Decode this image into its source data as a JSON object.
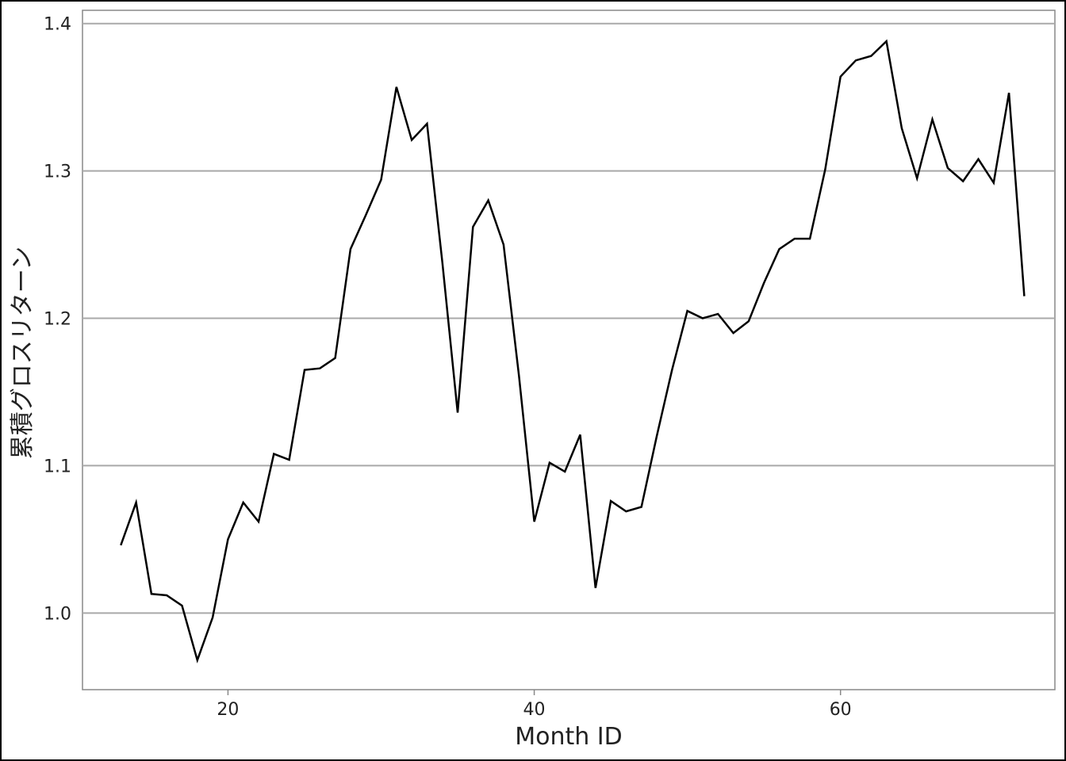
{
  "chart_data": {
    "type": "line",
    "title": "",
    "xlabel": "Month ID",
    "ylabel": "累積グロスリターン",
    "xlim": [
      10.5,
      74
    ],
    "ylim": [
      0.948,
      1.409
    ],
    "xticks": [
      20,
      40,
      60
    ],
    "yticks": [
      1.0,
      1.1,
      1.2,
      1.3,
      1.4
    ],
    "xtick_labels": [
      "20",
      "40",
      "60"
    ],
    "ytick_labels": [
      "1.0",
      "1.1",
      "1.2",
      "1.3",
      "1.4"
    ],
    "grid": "horizontal",
    "series": [
      {
        "color": "#000000",
        "x": [
          13,
          14,
          15,
          16,
          17,
          18,
          19,
          20,
          21,
          22,
          23,
          24,
          25,
          26,
          27,
          28,
          29,
          30,
          31,
          32,
          33,
          34,
          35,
          36,
          37,
          38,
          39,
          40,
          41,
          42,
          43,
          44,
          45,
          46,
          47,
          48,
          49,
          50,
          51,
          52,
          53,
          54,
          55,
          56,
          57,
          58,
          59,
          60,
          61,
          62,
          63,
          64,
          65,
          66,
          67,
          68,
          69,
          70,
          71,
          72
        ],
        "y": [
          1.046,
          1.075,
          1.013,
          1.012,
          1.005,
          0.968,
          0.997,
          1.05,
          1.075,
          1.062,
          1.108,
          1.104,
          1.165,
          1.166,
          1.173,
          1.247,
          1.27,
          1.294,
          1.357,
          1.321,
          1.332,
          1.238,
          1.136,
          1.262,
          1.28,
          1.25,
          1.161,
          1.062,
          1.102,
          1.096,
          1.121,
          1.017,
          1.076,
          1.069,
          1.072,
          1.12,
          1.165,
          1.205,
          1.2,
          1.203,
          1.19,
          1.198,
          1.224,
          1.247,
          1.254,
          1.254,
          1.301,
          1.364,
          1.375,
          1.378,
          1.388,
          1.329,
          1.295,
          1.335,
          1.302,
          1.293,
          1.308,
          1.292,
          1.353,
          1.215
        ]
      }
    ]
  }
}
